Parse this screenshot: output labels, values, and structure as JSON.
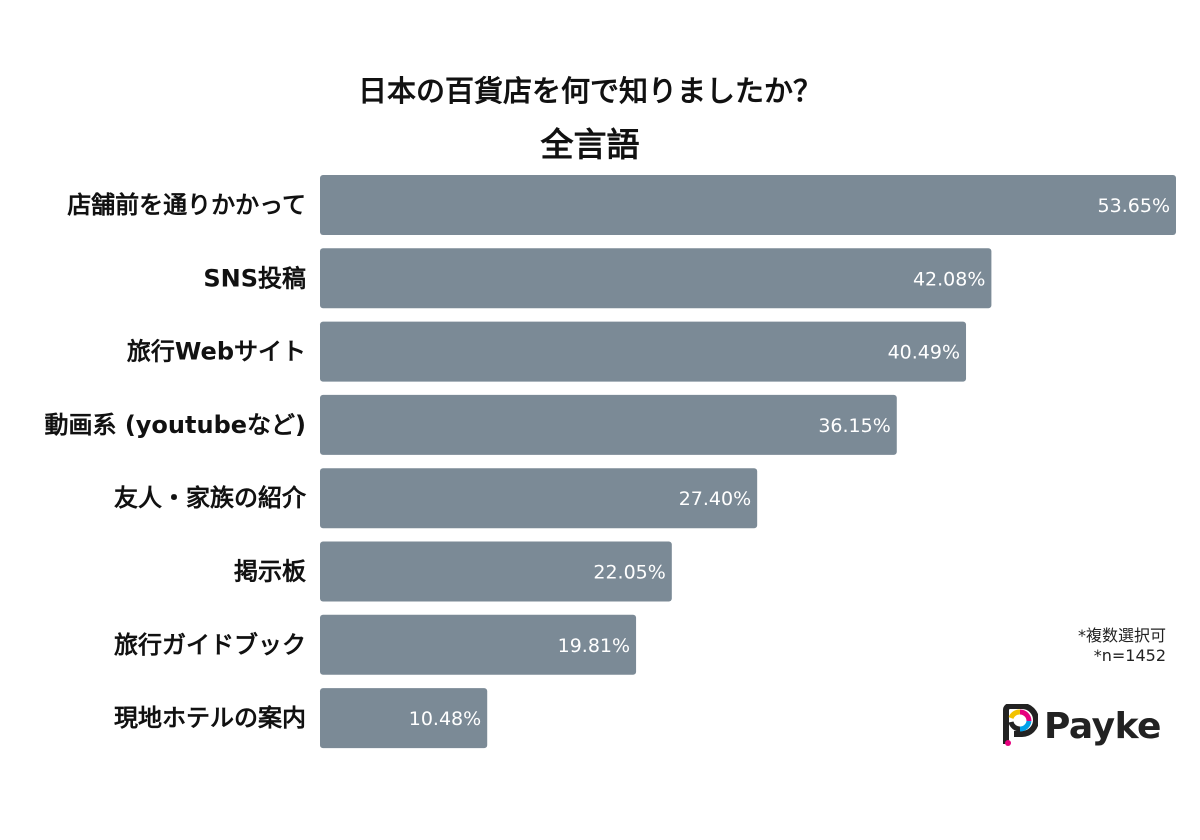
{
  "title": "日本の百貨店を何で知りましたか？",
  "subtitle": "全言語",
  "notes": {
    "multiple": "*複数選択可",
    "sample": "*n=1452"
  },
  "logo": {
    "text": "Payke"
  },
  "colors": {
    "bar": "#7b8a96",
    "value_text": "#ffffff"
  },
  "chart_data": {
    "type": "bar",
    "orientation": "horizontal",
    "categories": [
      "店舗前を通りかかって",
      "SNS投稿",
      "旅行Webサイト",
      "動画系 (youtubeなど)",
      "友人・家族の紹介",
      "掲示板",
      "旅行ガイドブック",
      "現地ホテルの案内"
    ],
    "values": [
      53.65,
      42.08,
      40.49,
      36.15,
      27.4,
      22.05,
      19.81,
      10.48
    ],
    "value_labels": [
      "53.65%",
      "42.08%",
      "40.49%",
      "36.15%",
      "27.40%",
      "22.05%",
      "19.81%",
      "10.48%"
    ],
    "title": "日本の百貨店を何で知りましたか？",
    "subtitle": "全言語",
    "xlabel": "",
    "ylabel": "",
    "unit": "%",
    "grid": false,
    "legend": "none"
  }
}
